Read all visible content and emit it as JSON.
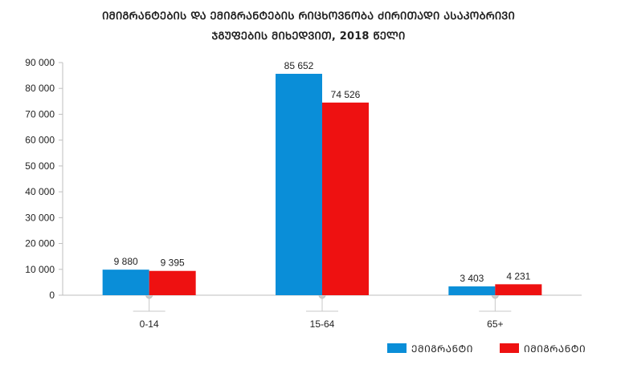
{
  "chart_data": {
    "type": "bar",
    "title_lines": [
      "ᲘᲛᲘᲒᲠᲐᲜᲢᲔᲑᲘᲡ ᲓᲐ ᲔᲛᲘᲒᲠᲐᲜᲢᲔᲑᲘᲡ ᲠᲘᲪᲮᲝᲕᲜᲝᲑᲐ ᲫᲘᲠᲘᲗᲐᲓᲘ ᲐᲡᲐᲙᲝᲑᲠᲘᲕᲘ",
      "ᲯᲒᲣᲤᲔᲑᲘᲡ ᲛᲘᲮᲔᲓᲕᲘᲗ, 2018 ᲬᲔᲚᲘ"
    ],
    "categories": [
      "0-14",
      "15-64",
      "65+"
    ],
    "series": [
      {
        "name": "ᲔᲛᲘᲒᲠᲐᲜᲢᲘ",
        "color": "#0a8ed8",
        "values": [
          9880,
          85652,
          3403
        ],
        "labels": [
          "9 880",
          "85 652",
          "3 403"
        ]
      },
      {
        "name": "ᲘᲛᲘᲒᲠᲐᲜᲢᲘ",
        "color": "#ee1111",
        "values": [
          9395,
          74526,
          4231
        ],
        "labels": [
          "9 395",
          "74 526",
          "4 231"
        ]
      }
    ],
    "ylim": [
      0,
      90000
    ],
    "yticks": [
      0,
      10000,
      20000,
      30000,
      40000,
      50000,
      60000,
      70000,
      80000,
      90000
    ],
    "ytick_labels": [
      "0",
      "10 000",
      "20 000",
      "30 000",
      "40 000",
      "50 000",
      "60 000",
      "70 000",
      "80 000",
      "90 000"
    ],
    "grid": false,
    "legend": "bottom-right",
    "xlabel": "",
    "ylabel": ""
  }
}
